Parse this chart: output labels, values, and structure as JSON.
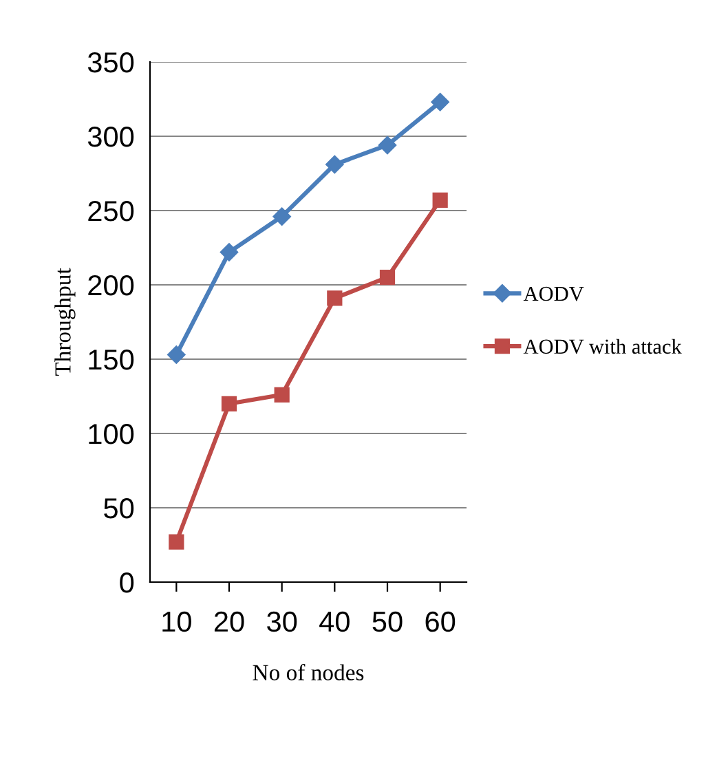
{
  "chart_data": {
    "type": "line",
    "xlabel": "No of nodes",
    "ylabel": "Throughput",
    "categories": [
      "10",
      "20",
      "30",
      "40",
      "50",
      "60"
    ],
    "series": [
      {
        "name": "AODV",
        "color": "#4a7ebb",
        "marker": "diamond",
        "values": [
          153,
          222,
          246,
          281,
          294,
          323
        ]
      },
      {
        "name": "AODV with attack",
        "color": "#be4b48",
        "marker": "square",
        "values": [
          27,
          120,
          126,
          191,
          205,
          257
        ]
      }
    ],
    "ylim": [
      0,
      350
    ],
    "yticks": [
      0,
      50,
      100,
      150,
      200,
      250,
      300,
      350
    ],
    "grid": "y",
    "legend": "right",
    "line_style": "solid"
  }
}
